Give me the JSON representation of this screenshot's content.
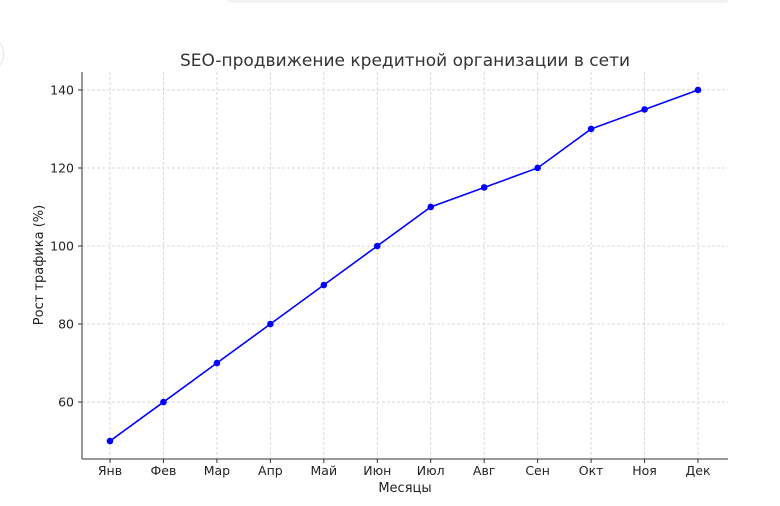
{
  "chart_data": {
    "type": "line",
    "title": "SEO-продвижение кредитной организации в сети",
    "xlabel": "Месяцы",
    "ylabel": "Рост трафика (%)",
    "categories": [
      "Янв",
      "Фев",
      "Мар",
      "Апр",
      "Май",
      "Июн",
      "Июл",
      "Авг",
      "Сен",
      "Окт",
      "Ноя",
      "Дек"
    ],
    "values": [
      50,
      60,
      70,
      80,
      90,
      100,
      110,
      115,
      120,
      130,
      135,
      140
    ],
    "yticks": [
      60,
      80,
      100,
      120,
      140
    ],
    "ylim": [
      45.4,
      144.6
    ],
    "grid": true,
    "color": "#0000ff",
    "marker": "circle"
  }
}
